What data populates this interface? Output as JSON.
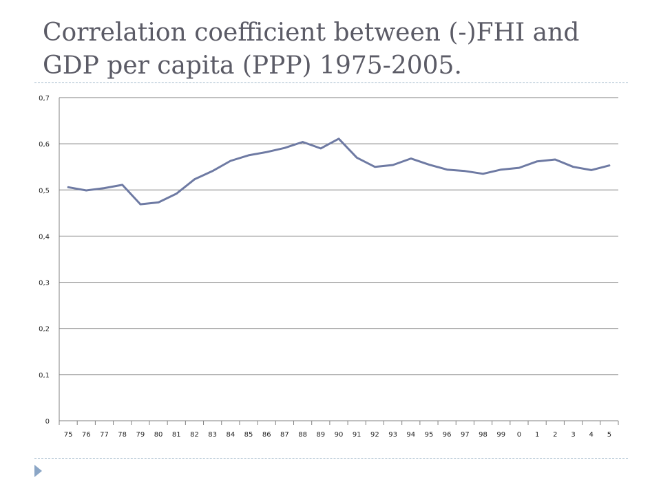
{
  "slide": {
    "title_line1": "Correlation coefficient between (-)FHI and",
    "title_line2": "GDP per capita (PPP) 1975-2005."
  },
  "colors": {
    "line": "#6e7aa3",
    "grid": "#808080",
    "rule": "#9fb7c9",
    "bullet": "#8ba6c6",
    "title": "#5b5b66"
  },
  "chart_data": {
    "type": "line",
    "title": "",
    "xlabel": "",
    "ylabel": "",
    "grid": true,
    "legend": "none",
    "ylim": [
      0,
      0.7
    ],
    "yticks": [
      "0",
      "0,1",
      "0,2",
      "0,3",
      "0,4",
      "0,5",
      "0,6",
      "0,7"
    ],
    "categories": [
      "75",
      "76",
      "77",
      "78",
      "79",
      "80",
      "81",
      "82",
      "83",
      "84",
      "85",
      "86",
      "87",
      "88",
      "89",
      "90",
      "91",
      "92",
      "93",
      "94",
      "95",
      "96",
      "97",
      "98",
      "99",
      "0",
      "1",
      "2",
      "3",
      "4",
      "5"
    ],
    "series": [
      {
        "values": [
          0.506,
          0.499,
          0.504,
          0.511,
          0.469,
          0.473,
          0.492,
          0.523,
          0.541,
          0.563,
          0.575,
          0.582,
          0.591,
          0.604,
          0.59,
          0.611,
          0.57,
          0.55,
          0.554,
          0.568,
          0.555,
          0.544,
          0.541,
          0.535,
          0.544,
          0.548,
          0.562,
          0.566,
          0.55,
          0.543,
          0.553
        ]
      }
    ]
  }
}
